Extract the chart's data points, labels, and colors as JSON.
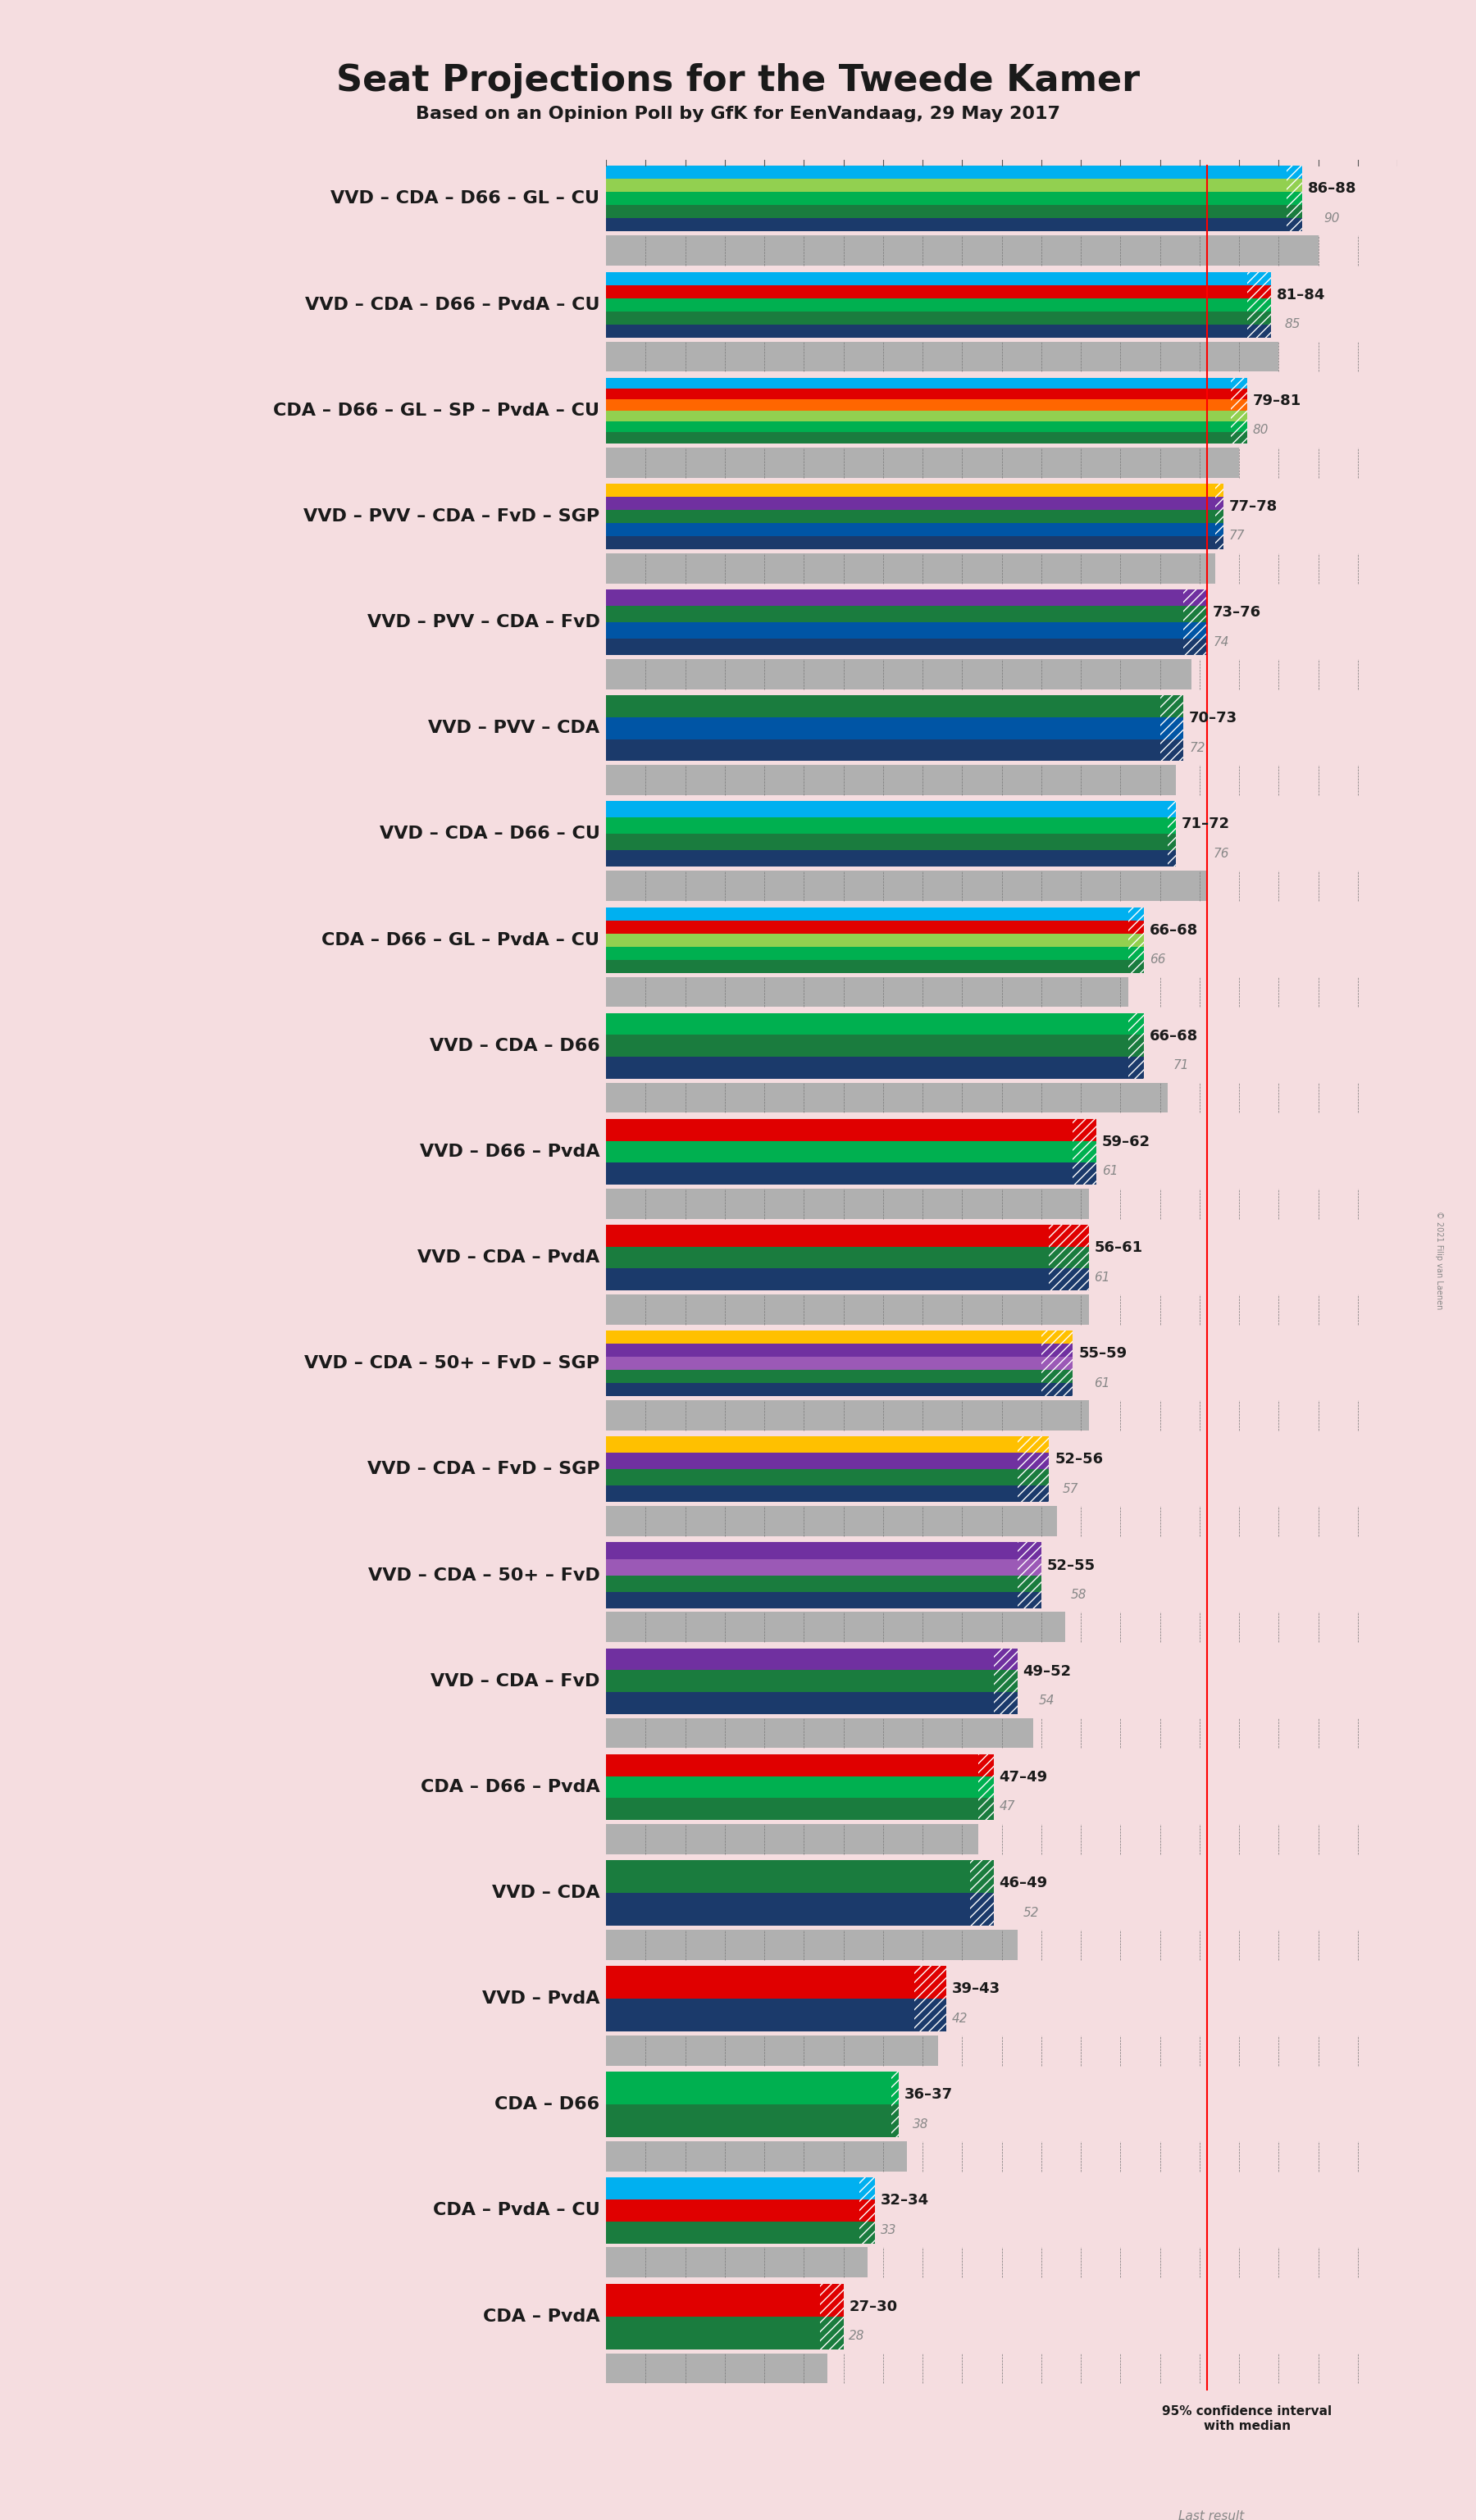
{
  "title": "Seat Projections for the Tweede Kamer",
  "subtitle": "Based on an Opinion Poll by GfK for EenVandaag, 29 May 2017",
  "background_color": "#f5dde0",
  "coalitions": [
    {
      "label": "VVD – CDA – D66 – GL – CU",
      "range_lo": 86,
      "range_hi": 88,
      "last_result": 90,
      "underline": false,
      "parties": [
        "VVD",
        "CDA",
        "D66",
        "GL",
        "CU"
      ]
    },
    {
      "label": "VVD – CDA – D66 – PvdA – CU",
      "range_lo": 81,
      "range_hi": 84,
      "last_result": 85,
      "underline": false,
      "parties": [
        "VVD",
        "CDA",
        "D66",
        "PvdA",
        "CU"
      ]
    },
    {
      "label": "CDA – D66 – GL – SP – PvdA – CU",
      "range_lo": 79,
      "range_hi": 81,
      "last_result": 80,
      "underline": false,
      "parties": [
        "CDA",
        "D66",
        "GL",
        "SP",
        "PvdA",
        "CU"
      ]
    },
    {
      "label": "VVD – PVV – CDA – FvD – SGP",
      "range_lo": 77,
      "range_hi": 78,
      "last_result": 77,
      "underline": false,
      "parties": [
        "VVD",
        "PVV",
        "CDA",
        "FvD",
        "SGP"
      ]
    },
    {
      "label": "VVD – PVV – CDA – FvD",
      "range_lo": 73,
      "range_hi": 76,
      "last_result": 74,
      "underline": false,
      "parties": [
        "VVD",
        "PVV",
        "CDA",
        "FvD"
      ]
    },
    {
      "label": "VVD – PVV – CDA",
      "range_lo": 70,
      "range_hi": 73,
      "last_result": 72,
      "underline": false,
      "parties": [
        "VVD",
        "PVV",
        "CDA"
      ]
    },
    {
      "label": "VVD – CDA – D66 – CU",
      "range_lo": 71,
      "range_hi": 72,
      "last_result": 76,
      "underline": true,
      "parties": [
        "VVD",
        "CDA",
        "D66",
        "CU"
      ]
    },
    {
      "label": "CDA – D66 – GL – PvdA – CU",
      "range_lo": 66,
      "range_hi": 68,
      "last_result": 66,
      "underline": false,
      "parties": [
        "CDA",
        "D66",
        "GL",
        "PvdA",
        "CU"
      ]
    },
    {
      "label": "VVD – CDA – D66",
      "range_lo": 66,
      "range_hi": 68,
      "last_result": 71,
      "underline": false,
      "parties": [
        "VVD",
        "CDA",
        "D66"
      ]
    },
    {
      "label": "VVD – D66 – PvdA",
      "range_lo": 59,
      "range_hi": 62,
      "last_result": 61,
      "underline": false,
      "parties": [
        "VVD",
        "D66",
        "PvdA"
      ]
    },
    {
      "label": "VVD – CDA – PvdA",
      "range_lo": 56,
      "range_hi": 61,
      "last_result": 61,
      "underline": false,
      "parties": [
        "VVD",
        "CDA",
        "PvdA"
      ]
    },
    {
      "label": "VVD – CDA – 50+ – FvD – SGP",
      "range_lo": 55,
      "range_hi": 59,
      "last_result": 61,
      "underline": false,
      "parties": [
        "VVD",
        "CDA",
        "50+",
        "FvD",
        "SGP"
      ]
    },
    {
      "label": "VVD – CDA – FvD – SGP",
      "range_lo": 52,
      "range_hi": 56,
      "last_result": 57,
      "underline": false,
      "parties": [
        "VVD",
        "CDA",
        "FvD",
        "SGP"
      ]
    },
    {
      "label": "VVD – CDA – 50+ – FvD",
      "range_lo": 52,
      "range_hi": 55,
      "last_result": 58,
      "underline": false,
      "parties": [
        "VVD",
        "CDA",
        "50+",
        "FvD"
      ]
    },
    {
      "label": "VVD – CDA – FvD",
      "range_lo": 49,
      "range_hi": 52,
      "last_result": 54,
      "underline": false,
      "parties": [
        "VVD",
        "CDA",
        "FvD"
      ]
    },
    {
      "label": "CDA – D66 – PvdA",
      "range_lo": 47,
      "range_hi": 49,
      "last_result": 47,
      "underline": false,
      "parties": [
        "CDA",
        "D66",
        "PvdA"
      ]
    },
    {
      "label": "VVD – CDA",
      "range_lo": 46,
      "range_hi": 49,
      "last_result": 52,
      "underline": false,
      "parties": [
        "VVD",
        "CDA"
      ]
    },
    {
      "label": "VVD – PvdA",
      "range_lo": 39,
      "range_hi": 43,
      "last_result": 42,
      "underline": false,
      "parties": [
        "VVD",
        "PvdA"
      ]
    },
    {
      "label": "CDA – D66",
      "range_lo": 36,
      "range_hi": 37,
      "last_result": 38,
      "underline": false,
      "parties": [
        "CDA",
        "D66"
      ]
    },
    {
      "label": "CDA – PvdA – CU",
      "range_lo": 32,
      "range_hi": 34,
      "last_result": 33,
      "underline": false,
      "parties": [
        "CDA",
        "PvdA",
        "CU"
      ]
    },
    {
      "label": "CDA – PvdA",
      "range_lo": 27,
      "range_hi": 30,
      "last_result": 28,
      "underline": false,
      "parties": [
        "CDA",
        "PvdA"
      ]
    }
  ],
  "party_colors": {
    "VVD": "#1b3a6b",
    "CDA": "#1a7c3e",
    "D66": "#00b050",
    "GL": "#92d050",
    "CU": "#00b0f0",
    "PvdA": "#e00000",
    "SP": "#ff6600",
    "PVV": "#0055a5",
    "FvD": "#7030a0",
    "SGP": "#ffc000",
    "50+": "#9b59b6"
  },
  "majority_line": 76,
  "last_result_color": "#b0b0b0",
  "range_text_color": "#1a1a1a",
  "last_result_text_color": "#888888",
  "label_fontsize": 16,
  "title_fontsize": 32,
  "subtitle_fontsize": 16,
  "copyright_text": "© 2021 Filip van Laenen"
}
